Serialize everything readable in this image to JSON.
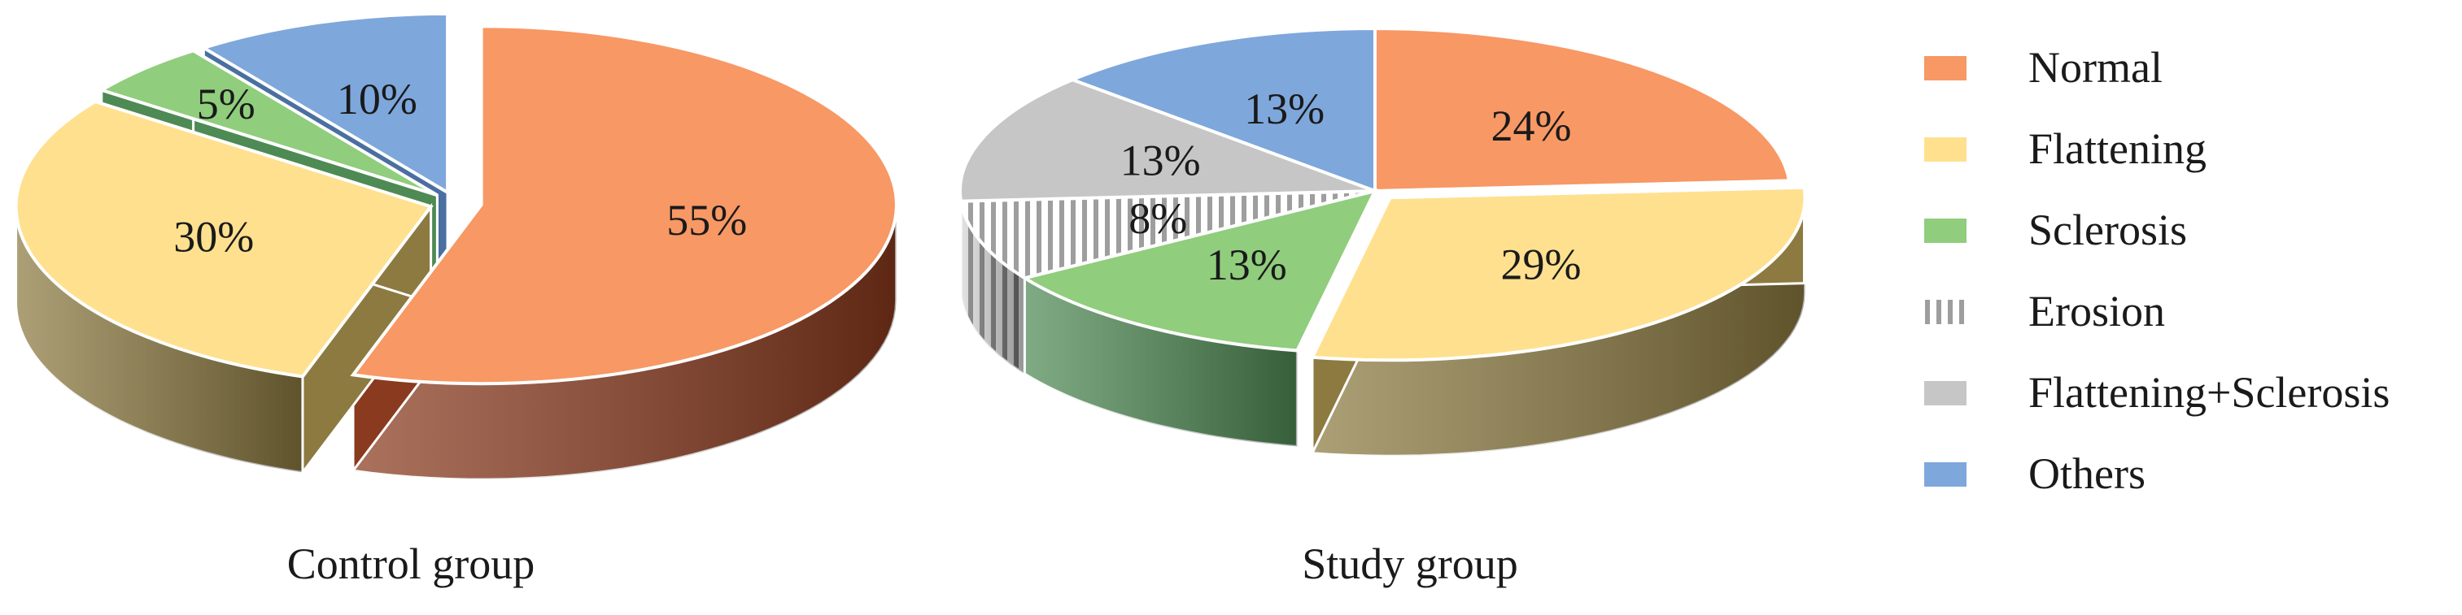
{
  "chart_data": [
    {
      "type": "pie",
      "title": "Control group",
      "categories": [
        "Normal",
        "Flattening",
        "Sclerosis",
        "Erosion",
        "Flattening+Sclerosis",
        "Others"
      ],
      "values": [
        55,
        30,
        5,
        0,
        0,
        10
      ],
      "labels": [
        "55%",
        "30%",
        "5%",
        "",
        "",
        "10%"
      ]
    },
    {
      "type": "pie",
      "title": "Study group",
      "categories": [
        "Normal",
        "Flattening",
        "Sclerosis",
        "Erosion",
        "Flattening+Sclerosis",
        "Others"
      ],
      "values": [
        24,
        29,
        13,
        8,
        13,
        13
      ],
      "labels": [
        "24%",
        "29%",
        "13%",
        "8%",
        "13%",
        "13%"
      ]
    }
  ],
  "legend": {
    "placement": "right",
    "items": [
      {
        "label": "Normal",
        "color": "#F79865"
      },
      {
        "label": "Flattening",
        "color": "#FEE08F"
      },
      {
        "label": "Sclerosis",
        "color": "#90CD7D"
      },
      {
        "label": "Erosion",
        "color": "#9E9E9E",
        "pattern": "vertical-hatch"
      },
      {
        "label": "Flattening+Sclerosis",
        "color": "#C6C6C6"
      },
      {
        "label": "Others",
        "color": "#7EA7DC"
      }
    ]
  },
  "side_colors": [
    "#8A3A1E",
    "#8C7A40",
    "#4E8A54",
    "#7A7A7A",
    "#8C8C8C",
    "#4A6FA0"
  ]
}
